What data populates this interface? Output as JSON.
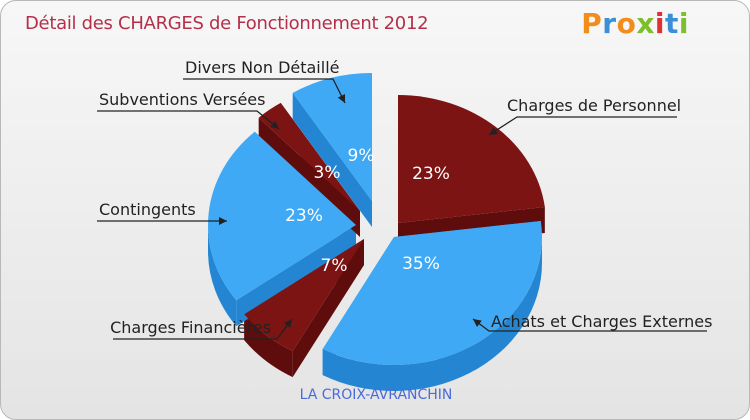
{
  "header": {
    "title": "Détail des CHARGES de Fonctionnement 2012",
    "logo": "Proxiti",
    "logo_colors": [
      "#f28c1c",
      "#3a8fd6",
      "#f28c1c",
      "#7bbf2a",
      "#e0302f",
      "#3a8fd6",
      "#7bbf2a"
    ]
  },
  "footer": {
    "commune": "LA CROIX-AVRANCHIN"
  },
  "colors": {
    "blue": "#3fa9f5",
    "blue_dark": "#2486d2",
    "red": "#7d1414",
    "red_dark": "#5e0c0c"
  },
  "chart_data": {
    "type": "pie",
    "title": "Détail des CHARGES de Fonctionnement 2012",
    "style": "3d-exploded",
    "slices": [
      {
        "label": "Charges de Personnel",
        "value": 23,
        "pct_label": "23%",
        "color": "red"
      },
      {
        "label": "Achats et Charges Externes",
        "value": 35,
        "pct_label": "35%",
        "color": "blue"
      },
      {
        "label": "Charges Financières",
        "value": 7,
        "pct_label": "7%",
        "color": "red"
      },
      {
        "label": "Contingents",
        "value": 23,
        "pct_label": "23%",
        "color": "blue"
      },
      {
        "label": "Subventions Versées",
        "value": 3,
        "pct_label": "3%",
        "color": "red"
      },
      {
        "label": "Divers Non Détaillé",
        "value": 9,
        "pct_label": "9%",
        "color": "blue"
      }
    ]
  }
}
